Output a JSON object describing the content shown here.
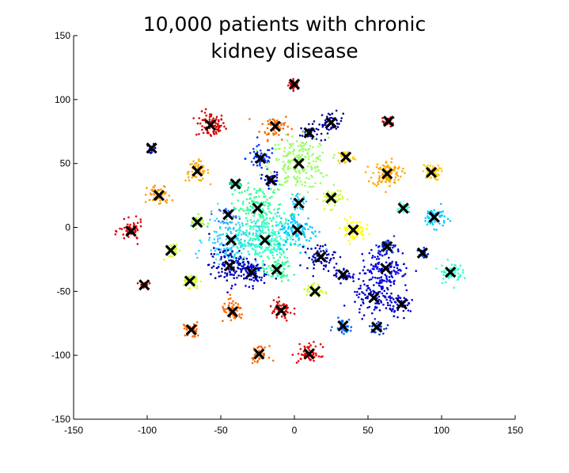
{
  "chart_data": {
    "type": "scatter",
    "title_lines": [
      "10,000 patients with chronic",
      "kidney disease"
    ],
    "xlabel": "",
    "ylabel": "",
    "xlim": [
      -150,
      150
    ],
    "ylim": [
      -150,
      150
    ],
    "x_ticks": [
      -150,
      -100,
      -50,
      0,
      50,
      100,
      150
    ],
    "y_ticks": [
      150,
      100,
      50,
      0,
      -50,
      -100,
      -150
    ],
    "grid": false,
    "clusters": [
      {
        "x": 0,
        "y": 112,
        "spread": 2,
        "n": 28,
        "color": "#cc0000"
      },
      {
        "x": 64,
        "y": 83,
        "spread": 2,
        "n": 28,
        "color": "#cc0000"
      },
      {
        "x": -57,
        "y": 80,
        "spread": 5,
        "n": 80,
        "color": "#d40000"
      },
      {
        "x": -13,
        "y": 79,
        "spread": 5,
        "n": 55,
        "color": "#ff6a00"
      },
      {
        "x": 10,
        "y": 74,
        "spread": 3,
        "n": 40,
        "color": "#000090"
      },
      {
        "x": 25,
        "y": 82,
        "spread": 4,
        "n": 45,
        "color": "#000090"
      },
      {
        "x": -97,
        "y": 62,
        "spread": 1.5,
        "n": 14,
        "color": "#0000cc"
      },
      {
        "x": -66,
        "y": 44,
        "spread": 4,
        "n": 55,
        "color": "#ffaa00"
      },
      {
        "x": -23,
        "y": 54,
        "spread": 5,
        "n": 55,
        "color": "#0033ff"
      },
      {
        "x": 3,
        "y": 50,
        "spread": 10,
        "n": 210,
        "color": "#99ff66"
      },
      {
        "x": 35,
        "y": 55,
        "spread": 3,
        "n": 40,
        "color": "#ffcc00"
      },
      {
        "x": 63,
        "y": 42,
        "spread": 5,
        "n": 110,
        "color": "#ffaa00"
      },
      {
        "x": 93,
        "y": 43,
        "spread": 3,
        "n": 45,
        "color": "#ffcc00"
      },
      {
        "x": -40,
        "y": 34,
        "spread": 2,
        "n": 22,
        "color": "#22cc99"
      },
      {
        "x": -16,
        "y": 37,
        "spread": 3,
        "n": 35,
        "color": "#0000cc"
      },
      {
        "x": -92,
        "y": 25,
        "spread": 4,
        "n": 60,
        "color": "#ff9900"
      },
      {
        "x": -25,
        "y": 15,
        "spread": 9,
        "n": 150,
        "color": "#33ff99"
      },
      {
        "x": -45,
        "y": 10,
        "spread": 3,
        "n": 30,
        "color": "#3366ff"
      },
      {
        "x": 3,
        "y": 19,
        "spread": 3,
        "n": 30,
        "color": "#33ccff"
      },
      {
        "x": 25,
        "y": 23,
        "spread": 4,
        "n": 45,
        "color": "#ccff33"
      },
      {
        "x": 74,
        "y": 15,
        "spread": 2,
        "n": 22,
        "color": "#33ffcc"
      },
      {
        "x": 95,
        "y": 8,
        "spread": 4,
        "n": 60,
        "color": "#00ccff"
      },
      {
        "x": -111,
        "y": -3,
        "spread": 4,
        "n": 55,
        "color": "#e00000"
      },
      {
        "x": -66,
        "y": 4,
        "spread": 2.5,
        "n": 28,
        "color": "#99ff33"
      },
      {
        "x": -43,
        "y": -10,
        "spread": 9,
        "n": 170,
        "color": "#33ccff"
      },
      {
        "x": -20,
        "y": -10,
        "spread": 10,
        "n": 230,
        "color": "#33ffcc"
      },
      {
        "x": 2,
        "y": -2,
        "spread": 7,
        "n": 110,
        "color": "#00ccff"
      },
      {
        "x": 40,
        "y": -2,
        "spread": 4,
        "n": 65,
        "color": "#ffff00"
      },
      {
        "x": -84,
        "y": -18,
        "spread": 3,
        "n": 35,
        "color": "#ccff33"
      },
      {
        "x": 18,
        "y": -23,
        "spread": 5,
        "n": 60,
        "color": "#0000aa"
      },
      {
        "x": 63,
        "y": -15,
        "spread": 3,
        "n": 40,
        "color": "#0033cc"
      },
      {
        "x": 87,
        "y": -20,
        "spread": 2,
        "n": 20,
        "color": "#0033cc"
      },
      {
        "x": -44,
        "y": -30,
        "spread": 7,
        "n": 120,
        "color": "#0000aa"
      },
      {
        "x": -29,
        "y": -35,
        "spread": 5,
        "n": 80,
        "color": "#0000cc"
      },
      {
        "x": -12,
        "y": -33,
        "spread": 5,
        "n": 65,
        "color": "#33ff99"
      },
      {
        "x": 33,
        "y": -37,
        "spread": 3,
        "n": 35,
        "color": "#0000cc"
      },
      {
        "x": 62,
        "y": -32,
        "spread": 8,
        "n": 140,
        "color": "#0000dd"
      },
      {
        "x": 106,
        "y": -35,
        "spread": 4,
        "n": 55,
        "color": "#33ffcc"
      },
      {
        "x": -102,
        "y": -45,
        "spread": 1.5,
        "n": 14,
        "color": "#cc0000"
      },
      {
        "x": -71,
        "y": -42,
        "spread": 3,
        "n": 40,
        "color": "#ccff33"
      },
      {
        "x": 14,
        "y": -50,
        "spread": 3,
        "n": 40,
        "color": "#ccff33"
      },
      {
        "x": 54,
        "y": -55,
        "spread": 7,
        "n": 100,
        "color": "#0000cc"
      },
      {
        "x": 73,
        "y": -60,
        "spread": 4,
        "n": 55,
        "color": "#0000cc"
      },
      {
        "x": -42,
        "y": -66,
        "spread": 4,
        "n": 55,
        "color": "#ff6600"
      },
      {
        "x": -9,
        "y": -65,
        "spread": 4,
        "n": 55,
        "color": "#dd0000"
      },
      {
        "x": -70,
        "y": -80,
        "spread": 3,
        "n": 40,
        "color": "#ff6600"
      },
      {
        "x": 33,
        "y": -77,
        "spread": 3,
        "n": 40,
        "color": "#0066ff"
      },
      {
        "x": 56,
        "y": -78,
        "spread": 2.5,
        "n": 30,
        "color": "#0033cc"
      },
      {
        "x": -24,
        "y": -99,
        "spread": 3,
        "n": 35,
        "color": "#ff6600"
      },
      {
        "x": 10,
        "y": -99,
        "spread": 4,
        "n": 55,
        "color": "#ee0000"
      }
    ]
  }
}
